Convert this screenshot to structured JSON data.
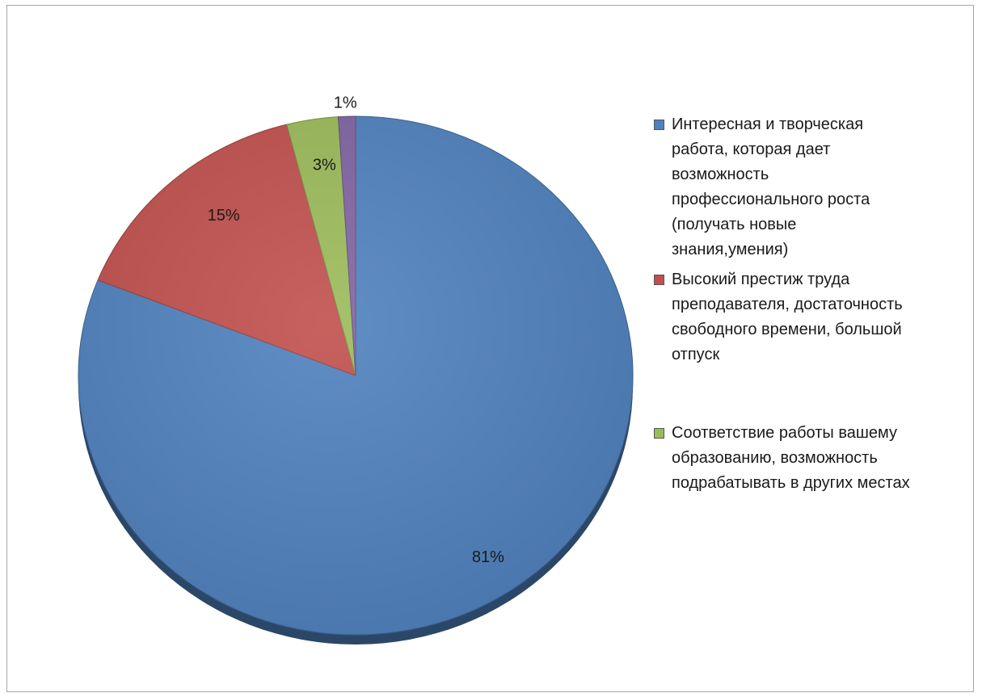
{
  "chart_data": {
    "type": "pie",
    "title": "",
    "slices": [
      {
        "label": "Интересная и творческая работа, которая дает возможность профессионального роста (получать новые знания,умения)",
        "value": 81,
        "data_label": "81%",
        "color": "#4f81bd"
      },
      {
        "label": "Высокий престиж труда преподавателя, достаточность свободного времени, большой отпуск",
        "value": 15,
        "data_label": "15%",
        "color": "#c0504d"
      },
      {
        "label": "Соответствие работы вашему образованию, возможность подрабатывать в других местах",
        "value": 3,
        "data_label": "3%",
        "color": "#9bbb59"
      },
      {
        "label": "",
        "value": 1,
        "data_label": "1%",
        "color": "#8064a2"
      }
    ],
    "legend_position": "right",
    "start_angle": "12 o'clock, clockwise"
  },
  "legend": {
    "items": [
      {
        "text": "Интересная и творческая\nработа, которая дает\nвозможность\nпрофессионального роста\n(получать новые\nзнания,умения)",
        "color": "#4f81bd"
      },
      {
        "text": "Высокий престиж труда\nпреподавателя, достаточность\nсвободного времени, большой\nотпуск",
        "color": "#c0504d"
      },
      {
        "text": "Соответствие работы вашему\nобразованию, возможность\nподрабатывать в других местах",
        "color": "#9bbb59"
      }
    ]
  }
}
